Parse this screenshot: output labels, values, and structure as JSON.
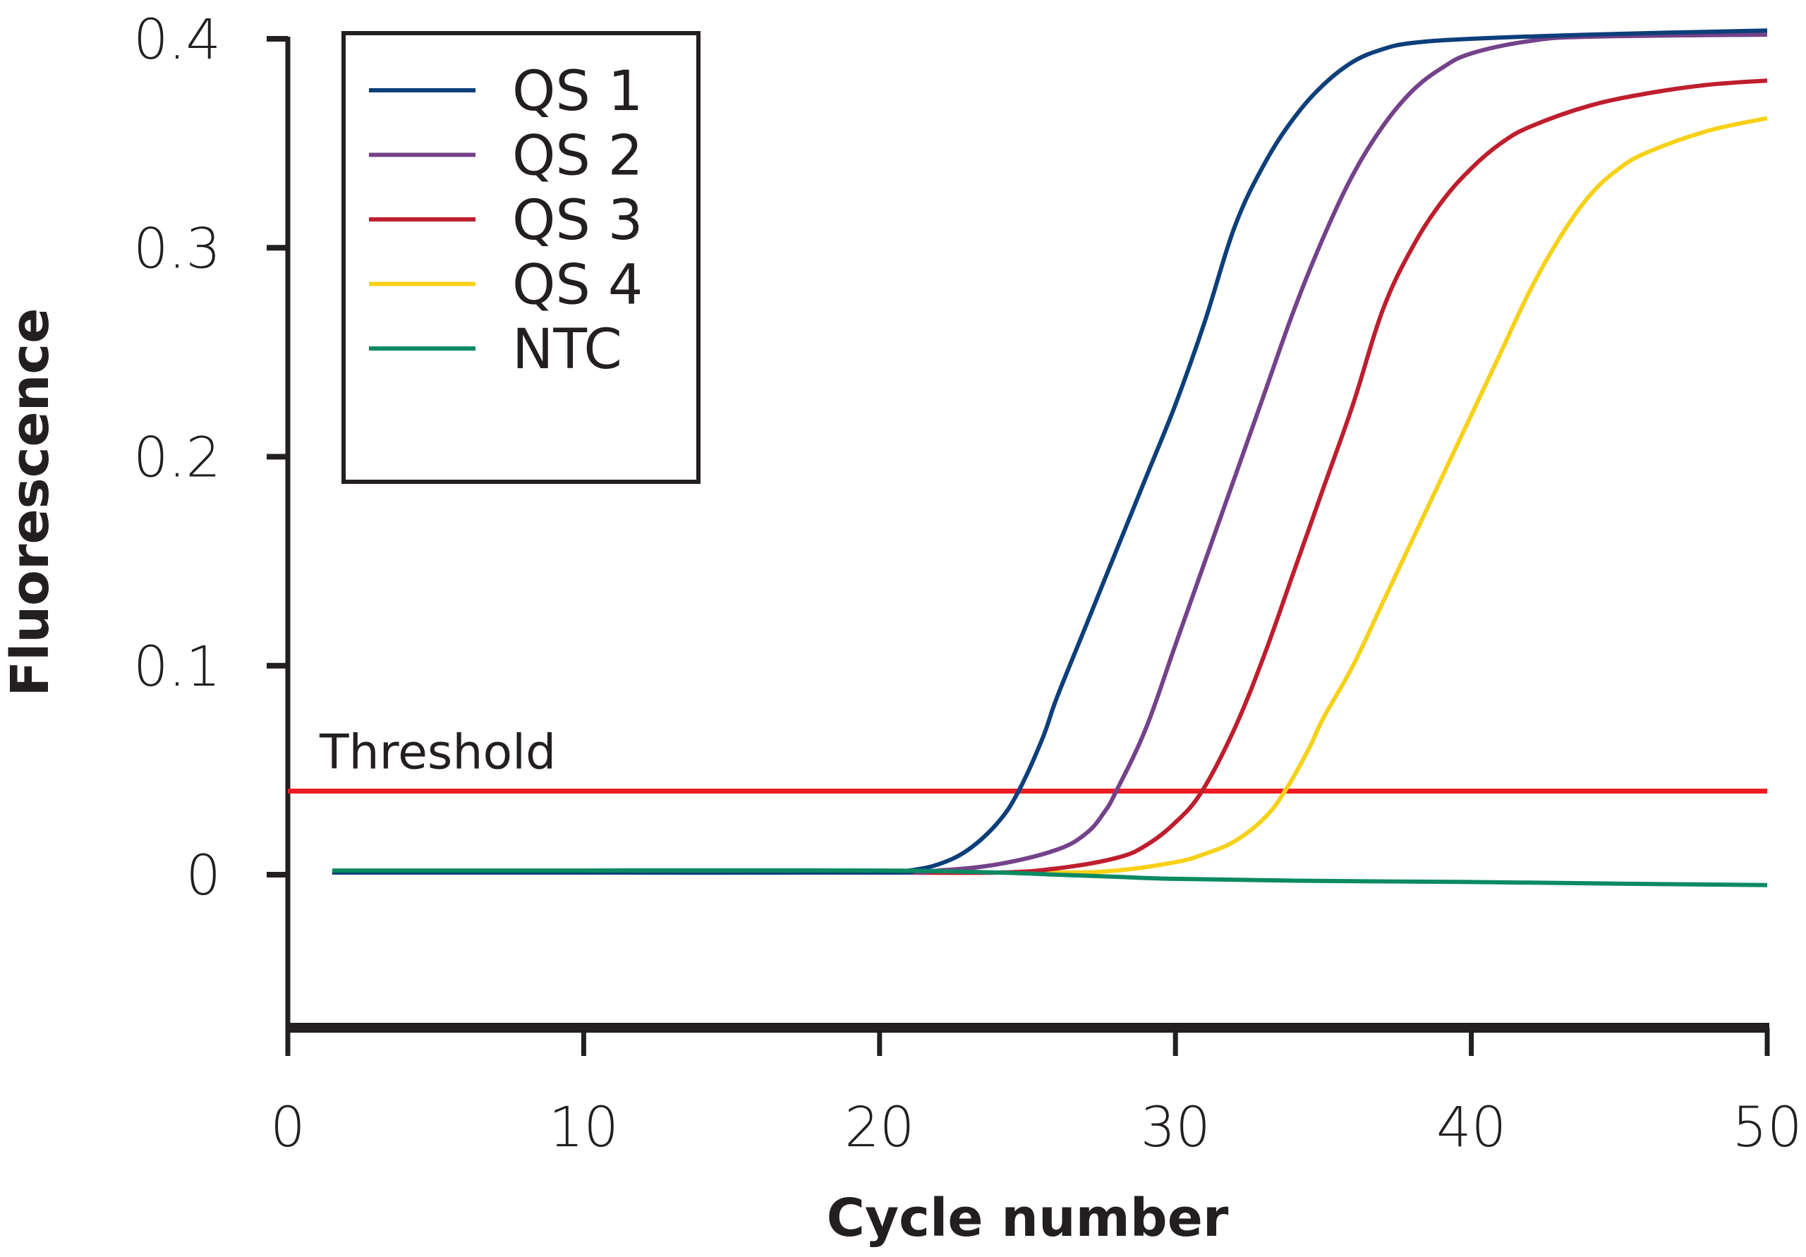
{
  "chart_data": {
    "type": "line",
    "title": "",
    "xlabel": "Cycle number",
    "ylabel": "Fluorescence",
    "xlim": [
      0,
      50
    ],
    "ylim": [
      -0.07,
      0.4
    ],
    "x_ticks": [
      0,
      10,
      20,
      30,
      40,
      50
    ],
    "x_tick_labels": [
      "0",
      "10",
      "20",
      "30",
      "40",
      "50"
    ],
    "y_ticks": [
      0,
      0.1,
      0.2,
      0.3,
      0.4
    ],
    "y_tick_labels": [
      "0",
      "0.1",
      "0.2",
      "0.3",
      "0.4"
    ],
    "grid": false,
    "legend_position": "top-left",
    "threshold": {
      "label": "Threshold",
      "value": 0.04,
      "color": "#ed1c24"
    },
    "series": [
      {
        "name": "QS 1",
        "color": "#0d3f7a",
        "x": [
          1.5,
          10,
          20,
          21,
          22,
          23,
          24,
          24.7,
          25.5,
          26,
          27,
          28,
          29,
          30,
          31,
          32,
          33,
          34,
          35,
          36,
          37,
          38,
          40,
          44,
          50
        ],
        "y": [
          0.001,
          0.001,
          0.001,
          0.002,
          0.005,
          0.012,
          0.025,
          0.04,
          0.065,
          0.085,
          0.12,
          0.155,
          0.19,
          0.225,
          0.265,
          0.31,
          0.34,
          0.362,
          0.378,
          0.389,
          0.395,
          0.398,
          0.4,
          0.402,
          0.404
        ]
      },
      {
        "name": "QS 2",
        "color": "#74428a",
        "x": [
          1.5,
          10,
          20,
          22,
          24,
          26,
          27,
          27.6,
          28,
          29,
          30,
          31,
          32,
          33,
          34,
          35,
          36,
          37,
          38,
          39,
          40,
          42,
          44,
          50
        ],
        "y": [
          0.001,
          0.001,
          0.001,
          0.002,
          0.005,
          0.012,
          0.02,
          0.03,
          0.04,
          0.07,
          0.11,
          0.15,
          0.19,
          0.23,
          0.27,
          0.305,
          0.335,
          0.358,
          0.375,
          0.386,
          0.393,
          0.399,
          0.401,
          0.402
        ]
      },
      {
        "name": "QS 3",
        "color": "#be1e2d",
        "x": [
          1.5,
          10,
          20,
          24,
          26,
          28,
          29,
          30,
          30.9,
          32,
          33,
          34,
          35,
          36,
          37,
          38,
          39,
          40,
          41,
          42,
          44,
          46,
          48,
          50
        ],
        "y": [
          0.001,
          0.001,
          0.001,
          0.001,
          0.003,
          0.008,
          0.014,
          0.025,
          0.04,
          0.07,
          0.105,
          0.145,
          0.185,
          0.225,
          0.27,
          0.3,
          0.322,
          0.338,
          0.35,
          0.358,
          0.368,
          0.374,
          0.378,
          0.38
        ]
      },
      {
        "name": "QS 4",
        "color": "#f7d117",
        "x": [
          1.5,
          10,
          20,
          26,
          28,
          30,
          31,
          32,
          33,
          33.7,
          34.5,
          35,
          36,
          37,
          38,
          39,
          40,
          41,
          42,
          43,
          44,
          45,
          46,
          48,
          50
        ],
        "y": [
          0.001,
          0.001,
          0.001,
          0.001,
          0.002,
          0.006,
          0.01,
          0.016,
          0.027,
          0.04,
          0.06,
          0.075,
          0.1,
          0.13,
          0.16,
          0.19,
          0.22,
          0.25,
          0.28,
          0.305,
          0.325,
          0.338,
          0.346,
          0.356,
          0.362
        ]
      },
      {
        "name": "NTC",
        "color": "#0b8a63",
        "x": [
          1.5,
          10,
          20,
          24,
          26,
          28,
          30,
          35,
          40,
          45,
          50
        ],
        "y": [
          0.002,
          0.002,
          0.002,
          0.001,
          0.0,
          -0.001,
          -0.002,
          -0.003,
          -0.0035,
          -0.0043,
          -0.005
        ]
      }
    ]
  }
}
